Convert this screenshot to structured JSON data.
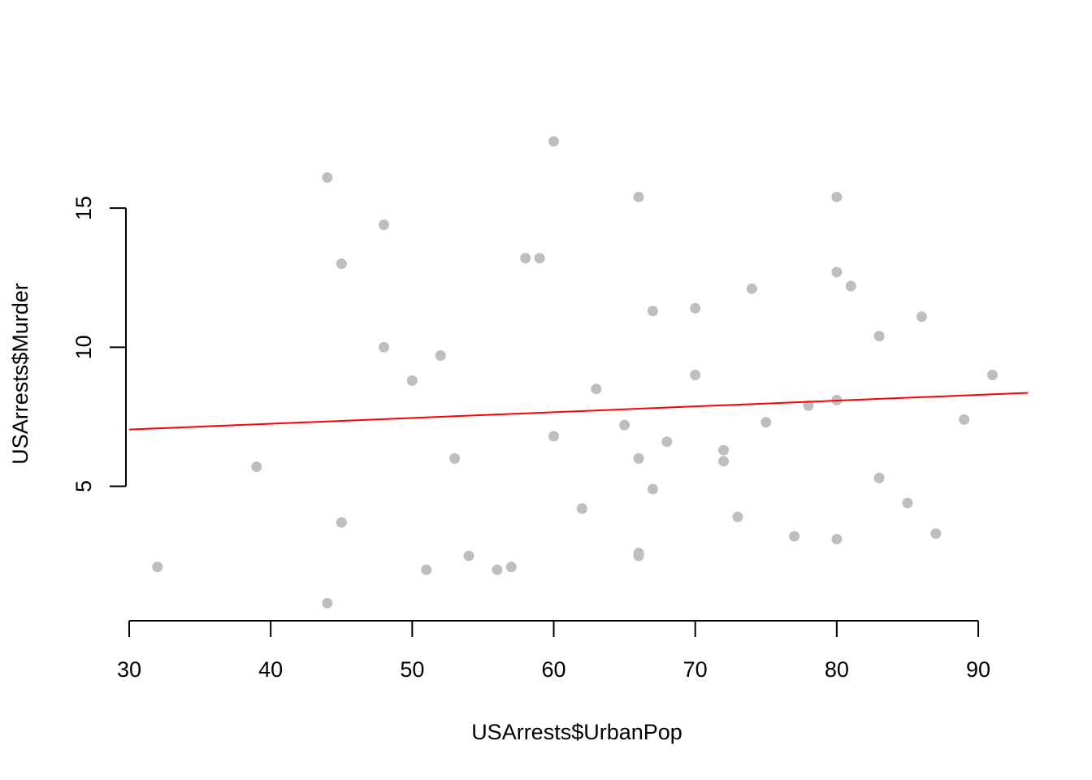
{
  "chart_data": {
    "type": "scatter",
    "title": "",
    "xlabel": "USArrests$UrbanPop",
    "ylabel": "USArrests$Murder",
    "xlim": [
      30,
      93.5
    ],
    "ylim": [
      0.4,
      18.1
    ],
    "x_ticks": [
      30,
      40,
      50,
      60,
      70,
      80,
      90
    ],
    "y_ticks": [
      5,
      10,
      15
    ],
    "grid": false,
    "legend": "none",
    "point_color": "#bebebe",
    "line_color": "#ff0000",
    "regression_line": {
      "x": [
        30,
        93.5
      ],
      "y": [
        7.04,
        8.36
      ]
    },
    "points": [
      {
        "x": 32,
        "y": 2.1
      },
      {
        "x": 39,
        "y": 5.7
      },
      {
        "x": 44,
        "y": 16.1
      },
      {
        "x": 44,
        "y": 0.8
      },
      {
        "x": 45,
        "y": 13.0
      },
      {
        "x": 45,
        "y": 3.7
      },
      {
        "x": 48,
        "y": 14.4
      },
      {
        "x": 48,
        "y": 10.0
      },
      {
        "x": 50,
        "y": 8.8
      },
      {
        "x": 51,
        "y": 2.0
      },
      {
        "x": 52,
        "y": 9.7
      },
      {
        "x": 53,
        "y": 6.0
      },
      {
        "x": 54,
        "y": 2.5
      },
      {
        "x": 56,
        "y": 2.0
      },
      {
        "x": 57,
        "y": 2.1
      },
      {
        "x": 58,
        "y": 13.2
      },
      {
        "x": 59,
        "y": 13.2
      },
      {
        "x": 60,
        "y": 17.4
      },
      {
        "x": 60,
        "y": 6.8
      },
      {
        "x": 62,
        "y": 4.2
      },
      {
        "x": 63,
        "y": 8.5
      },
      {
        "x": 65,
        "y": 7.2
      },
      {
        "x": 66,
        "y": 15.4
      },
      {
        "x": 66,
        "y": 6.0
      },
      {
        "x": 66,
        "y": 2.6
      },
      {
        "x": 66,
        "y": 2.5
      },
      {
        "x": 67,
        "y": 11.3
      },
      {
        "x": 67,
        "y": 4.9
      },
      {
        "x": 68,
        "y": 6.6
      },
      {
        "x": 70,
        "y": 11.4
      },
      {
        "x": 70,
        "y": 9.0
      },
      {
        "x": 72,
        "y": 6.3
      },
      {
        "x": 72,
        "y": 5.9
      },
      {
        "x": 73,
        "y": 3.9
      },
      {
        "x": 74,
        "y": 12.1
      },
      {
        "x": 75,
        "y": 7.3
      },
      {
        "x": 77,
        "y": 3.2
      },
      {
        "x": 78,
        "y": 7.9
      },
      {
        "x": 80,
        "y": 15.4
      },
      {
        "x": 80,
        "y": 12.7
      },
      {
        "x": 80,
        "y": 8.1
      },
      {
        "x": 80,
        "y": 3.1
      },
      {
        "x": 81,
        "y": 12.2
      },
      {
        "x": 83,
        "y": 10.4
      },
      {
        "x": 83,
        "y": 5.3
      },
      {
        "x": 85,
        "y": 4.4
      },
      {
        "x": 86,
        "y": 11.1
      },
      {
        "x": 87,
        "y": 3.3
      },
      {
        "x": 89,
        "y": 7.4
      },
      {
        "x": 91,
        "y": 9.0
      }
    ]
  }
}
